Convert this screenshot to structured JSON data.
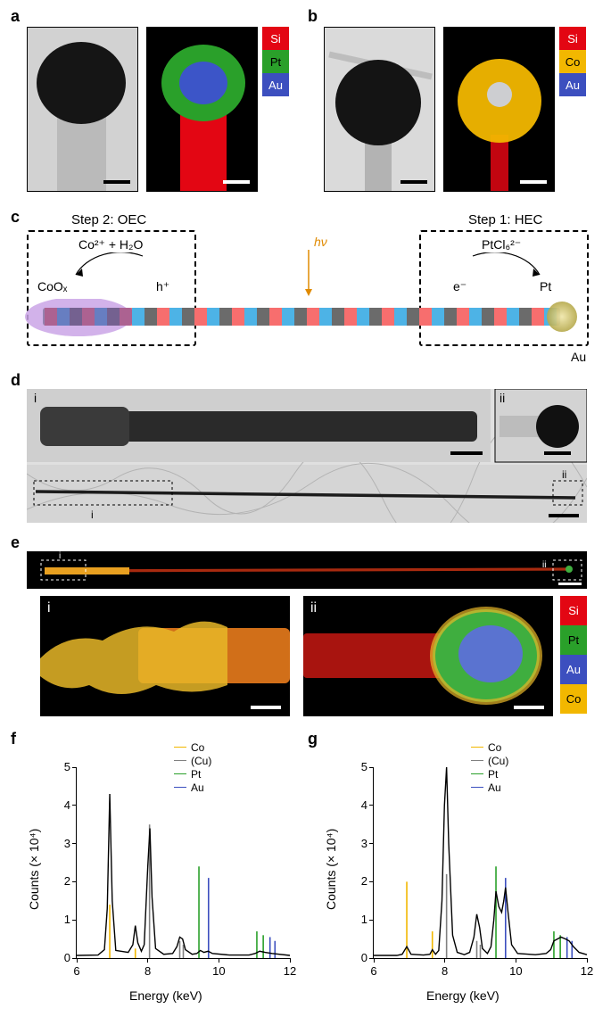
{
  "panels": {
    "a": {
      "label": "a"
    },
    "b": {
      "label": "b"
    },
    "c": {
      "label": "c",
      "step2_title": "Step 2: OEC",
      "step1_title": "Step 1: HEC",
      "rx2_top": "Co²⁺ + H₂O",
      "rx2_left": "CoOₓ",
      "rx2_right": "h⁺",
      "rx1_top": "PtCl₆²⁻",
      "rx1_left": "e⁻",
      "rx1_right": "Pt",
      "hv": "hν",
      "au": "Au",
      "wire": {
        "base_color": "#bfbfbf",
        "stripe_red_color": "#f76e6e",
        "stripe_blue_color": "#4db3e6",
        "purple_highlight": "#c79de3",
        "cloud_color": "#caa5e6",
        "au_color": "#cfc16b"
      }
    },
    "d": {
      "label": "d",
      "sub1": "i",
      "sub2": "ii"
    },
    "e": {
      "label": "e",
      "sub1": "i",
      "sub2": "ii"
    },
    "f": {
      "label": "f"
    },
    "g": {
      "label": "g"
    }
  },
  "legend_ab1": [
    {
      "name": "Si",
      "color": "#e30613"
    },
    {
      "name": "Pt",
      "color": "#2aa02a"
    },
    {
      "name": "Au",
      "color": "#3c4fbf"
    }
  ],
  "legend_ab2": [
    {
      "name": "Si",
      "color": "#e30613"
    },
    {
      "name": "Co",
      "color": "#f2b700"
    },
    {
      "name": "Au",
      "color": "#3c4fbf"
    }
  ],
  "legend_e": [
    {
      "name": "Si",
      "color": "#e30613"
    },
    {
      "name": "Pt",
      "color": "#2aa02a"
    },
    {
      "name": "Au",
      "color": "#3c4fbf"
    },
    {
      "name": "Co",
      "color": "#f2b700"
    }
  ],
  "panel_a_tem": {
    "stem_color": "#c8c8c8",
    "head_color": "#1a1a1a",
    "bg": "#d2d2d2"
  },
  "panel_a_map": {
    "stem_color": "#e30613",
    "shell_color": "#2aa02a",
    "core_color": "#3c4fbf"
  },
  "panel_b_tem": {
    "stem_color": "#b8b8b8",
    "head_color": "#1a1a1a",
    "bg": "#d9d9d9"
  },
  "panel_b_map": {
    "stem_color": "#c20510",
    "shell_color": "#f2b700",
    "core_color": "#cad1e8"
  },
  "panel_e_ii": {
    "stem_color": "#a8140f",
    "shell_color": "#3fae3f",
    "core_color": "#5a73d0",
    "co_color": "#e8b728"
  },
  "chart_legend": [
    {
      "name": "Co",
      "color": "#f2b700"
    },
    {
      "name": "(Cu)",
      "color": "#808080"
    },
    {
      "name": "Pt",
      "color": "#2aa02a"
    },
    {
      "name": "Au",
      "color": "#3c4fbf"
    }
  ],
  "chart_style": {
    "line_color": "#000000",
    "bg": "#ffffff",
    "xlabel": "Energy (keV)",
    "ylabel": "Counts (× 10⁴)",
    "xlim": [
      6,
      12
    ],
    "ylim": [
      0,
      5
    ],
    "xticks": [
      6,
      8,
      10,
      12
    ],
    "yticks": [
      0,
      1,
      2,
      3,
      4,
      5
    ],
    "tick_fontsize": 13,
    "label_fontsize": 14
  },
  "chart_f": {
    "refs": [
      {
        "x": 6.93,
        "h": 1.4,
        "color": "#f2b700"
      },
      {
        "x": 7.65,
        "h": 0.25,
        "color": "#f2b700"
      },
      {
        "x": 8.05,
        "h": 3.5,
        "color": "#808080"
      },
      {
        "x": 8.9,
        "h": 0.45,
        "color": "#808080"
      },
      {
        "x": 9.0,
        "h": 0.35,
        "color": "#808080"
      },
      {
        "x": 9.44,
        "h": 2.4,
        "color": "#2aa02a"
      },
      {
        "x": 9.71,
        "h": 2.1,
        "color": "#3c4fbf"
      },
      {
        "x": 11.07,
        "h": 0.7,
        "color": "#2aa02a"
      },
      {
        "x": 11.25,
        "h": 0.6,
        "color": "#2aa02a"
      },
      {
        "x": 11.44,
        "h": 0.55,
        "color": "#3c4fbf"
      },
      {
        "x": 11.58,
        "h": 0.45,
        "color": "#3c4fbf"
      }
    ],
    "curve": [
      [
        6.0,
        0.07
      ],
      [
        6.6,
        0.08
      ],
      [
        6.78,
        0.22
      ],
      [
        6.86,
        1.3
      ],
      [
        6.93,
        4.3
      ],
      [
        7.0,
        1.5
      ],
      [
        7.1,
        0.2
      ],
      [
        7.45,
        0.15
      ],
      [
        7.58,
        0.35
      ],
      [
        7.65,
        0.85
      ],
      [
        7.72,
        0.4
      ],
      [
        7.82,
        0.18
      ],
      [
        7.9,
        0.35
      ],
      [
        8.0,
        2.4
      ],
      [
        8.06,
        3.4
      ],
      [
        8.12,
        1.6
      ],
      [
        8.22,
        0.25
      ],
      [
        8.45,
        0.1
      ],
      [
        8.7,
        0.12
      ],
      [
        8.82,
        0.3
      ],
      [
        8.9,
        0.55
      ],
      [
        8.98,
        0.5
      ],
      [
        9.06,
        0.22
      ],
      [
        9.25,
        0.1
      ],
      [
        9.38,
        0.12
      ],
      [
        9.48,
        0.2
      ],
      [
        9.58,
        0.15
      ],
      [
        9.7,
        0.18
      ],
      [
        9.82,
        0.12
      ],
      [
        10.3,
        0.08
      ],
      [
        10.85,
        0.08
      ],
      [
        11.02,
        0.12
      ],
      [
        11.15,
        0.18
      ],
      [
        11.3,
        0.15
      ],
      [
        11.5,
        0.12
      ],
      [
        12.0,
        0.07
      ]
    ]
  },
  "chart_g": {
    "refs": [
      {
        "x": 6.93,
        "h": 2.0,
        "color": "#f2b700"
      },
      {
        "x": 7.65,
        "h": 0.7,
        "color": "#f2b700"
      },
      {
        "x": 8.05,
        "h": 2.2,
        "color": "#808080"
      },
      {
        "x": 8.9,
        "h": 0.45,
        "color": "#808080"
      },
      {
        "x": 9.0,
        "h": 0.35,
        "color": "#808080"
      },
      {
        "x": 9.44,
        "h": 2.4,
        "color": "#2aa02a"
      },
      {
        "x": 9.71,
        "h": 2.1,
        "color": "#3c4fbf"
      },
      {
        "x": 11.07,
        "h": 0.7,
        "color": "#2aa02a"
      },
      {
        "x": 11.25,
        "h": 0.6,
        "color": "#2aa02a"
      },
      {
        "x": 11.44,
        "h": 0.55,
        "color": "#3c4fbf"
      },
      {
        "x": 11.58,
        "h": 0.45,
        "color": "#3c4fbf"
      }
    ],
    "curve": [
      [
        6.0,
        0.07
      ],
      [
        6.65,
        0.07
      ],
      [
        6.8,
        0.1
      ],
      [
        6.93,
        0.3
      ],
      [
        7.05,
        0.1
      ],
      [
        7.4,
        0.08
      ],
      [
        7.58,
        0.1
      ],
      [
        7.65,
        0.22
      ],
      [
        7.74,
        0.1
      ],
      [
        7.83,
        0.2
      ],
      [
        7.92,
        1.5
      ],
      [
        7.99,
        4.0
      ],
      [
        8.05,
        5.0
      ],
      [
        8.11,
        3.0
      ],
      [
        8.22,
        0.6
      ],
      [
        8.35,
        0.15
      ],
      [
        8.55,
        0.09
      ],
      [
        8.7,
        0.15
      ],
      [
        8.82,
        0.55
      ],
      [
        8.9,
        1.15
      ],
      [
        8.98,
        0.8
      ],
      [
        9.06,
        0.25
      ],
      [
        9.2,
        0.12
      ],
      [
        9.3,
        0.3
      ],
      [
        9.38,
        1.0
      ],
      [
        9.44,
        1.75
      ],
      [
        9.52,
        1.35
      ],
      [
        9.6,
        1.2
      ],
      [
        9.66,
        1.5
      ],
      [
        9.71,
        1.85
      ],
      [
        9.78,
        1.2
      ],
      [
        9.88,
        0.35
      ],
      [
        10.05,
        0.12
      ],
      [
        10.55,
        0.09
      ],
      [
        10.85,
        0.12
      ],
      [
        10.98,
        0.22
      ],
      [
        11.07,
        0.45
      ],
      [
        11.17,
        0.5
      ],
      [
        11.27,
        0.55
      ],
      [
        11.4,
        0.5
      ],
      [
        11.5,
        0.45
      ],
      [
        11.62,
        0.3
      ],
      [
        11.78,
        0.15
      ],
      [
        12.0,
        0.09
      ]
    ]
  }
}
